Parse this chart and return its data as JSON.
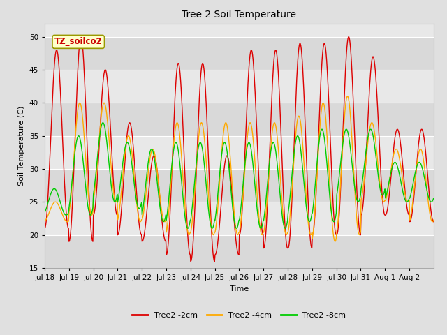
{
  "title": "Tree 2 Soil Temperature",
  "xlabel": "Time",
  "ylabel": "Soil Temperature (C)",
  "ylim": [
    15,
    52
  ],
  "yticks": [
    15,
    20,
    25,
    30,
    35,
    40,
    45,
    50
  ],
  "annotation": "TZ_soilco2",
  "legend_labels": [
    "Tree2 -2cm",
    "Tree2 -4cm",
    "Tree2 -8cm"
  ],
  "legend_colors": [
    "#dd0000",
    "#ffaa00",
    "#00cc00"
  ],
  "fig_bg_color": "#e0e0e0",
  "plot_bg_color": "#e8e8e8",
  "x_tick_labels": [
    "Jul 18",
    "Jul 19",
    "Jul 20",
    "Jul 21",
    "Jul 22",
    "Jul 23",
    "Jul 24",
    "Jul 25",
    "Jul 26",
    "Jul 27",
    "Jul 28",
    "Jul 29",
    "Jul 30",
    "Jul 31",
    "Aug 1",
    "Aug 2"
  ],
  "n_days": 16,
  "color_2cm": "#dd0000",
  "color_4cm": "#ffaa00",
  "color_8cm": "#00cc00",
  "peaks_2cm": [
    48,
    50,
    45,
    37,
    32,
    46,
    46,
    32,
    48,
    48,
    49,
    49,
    50,
    47,
    36,
    36
  ],
  "troughs_2cm": [
    21,
    19,
    23,
    20,
    19,
    17,
    16,
    17,
    20,
    18,
    18,
    20,
    20,
    23,
    23,
    22
  ],
  "peaks_4cm": [
    25,
    40,
    40,
    35,
    33,
    37,
    37,
    37,
    37,
    37,
    38,
    40,
    41,
    37,
    33,
    33
  ],
  "troughs_4cm": [
    22,
    23,
    25,
    22,
    22,
    20,
    20,
    20,
    20,
    20,
    20,
    19,
    20,
    25,
    25,
    22
  ],
  "peaks_8cm": [
    27,
    35,
    37,
    34,
    33,
    34,
    34,
    34,
    34,
    34,
    35,
    36,
    36,
    36,
    31,
    31
  ],
  "troughs_8cm": [
    23,
    23,
    25,
    24,
    22,
    21,
    21,
    21,
    21,
    21,
    22,
    22,
    25,
    26,
    25,
    25
  ]
}
